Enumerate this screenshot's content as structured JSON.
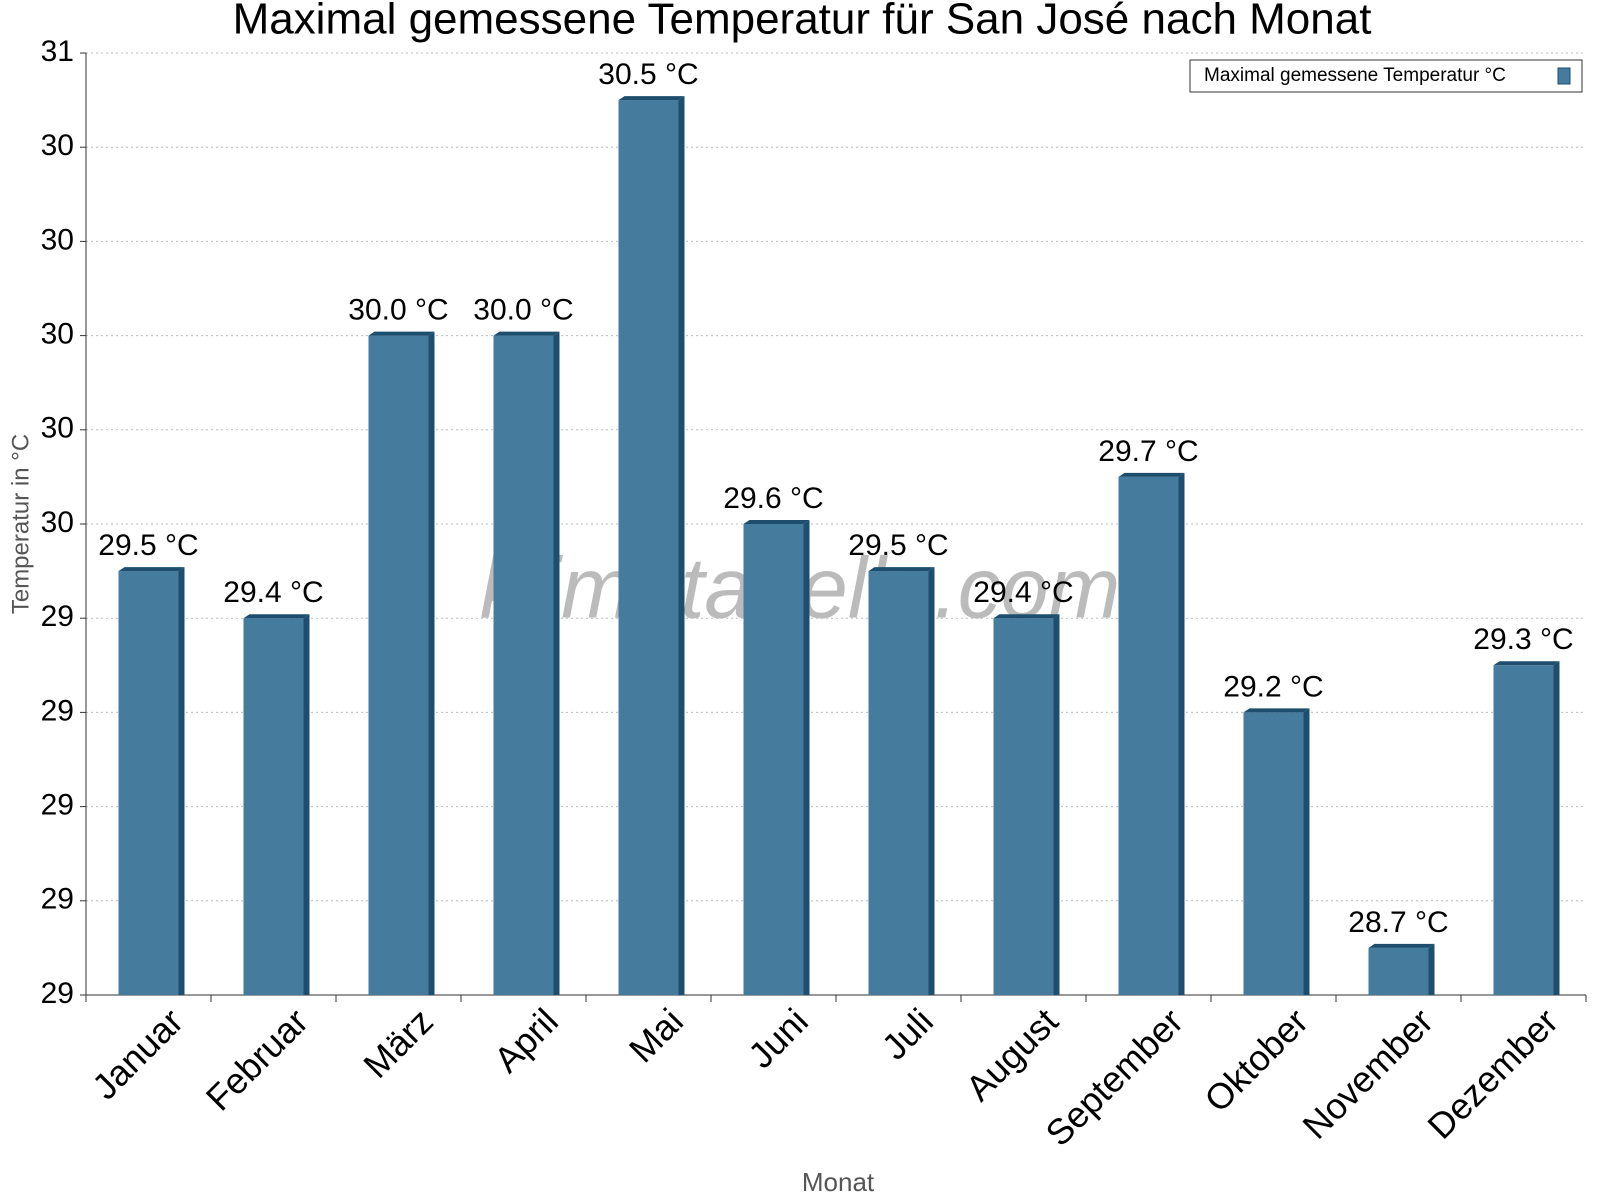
{
  "chart_data": {
    "type": "bar",
    "title": "Maximal gemessene Temperatur für San José nach Monat",
    "watermark": "klimatabelle.com",
    "x_label": "Monat",
    "y_label": "Temperatur in °C",
    "categories": [
      "Januar",
      "Februar",
      "März",
      "April",
      "Mai",
      "Juni",
      "Juli",
      "August",
      "September",
      "Oktober",
      "November",
      "Dezember"
    ],
    "series": [
      {
        "name": "Maximal gemessene Temperatur °C",
        "color": "#457b9d",
        "values": [
          29.5,
          29.4,
          30.0,
          30.0,
          30.5,
          29.6,
          29.5,
          29.4,
          29.7,
          29.2,
          28.7,
          29.3
        ],
        "value_labels": [
          "29.5 °C",
          "29.4 °C",
          "30.0 °C",
          "30.0 °C",
          "30.5 °C",
          "29.6 °C",
          "29.5 °C",
          "29.4 °C",
          "29.7 °C",
          "29.2 °C",
          "28.7 °C",
          "29.3 °C"
        ]
      }
    ],
    "ylim": [
      28.6,
      30.6
    ],
    "yticks": [
      {
        "value": 28.6,
        "label": "29"
      },
      {
        "value": 28.8,
        "label": "29"
      },
      {
        "value": 29.0,
        "label": "29"
      },
      {
        "value": 29.2,
        "label": "29"
      },
      {
        "value": 29.4,
        "label": "29"
      },
      {
        "value": 29.6,
        "label": "30"
      },
      {
        "value": 29.8,
        "label": "30"
      },
      {
        "value": 30.0,
        "label": "30"
      },
      {
        "value": 30.2,
        "label": "30"
      },
      {
        "value": 30.4,
        "label": "30"
      },
      {
        "value": 30.6,
        "label": "31"
      }
    ],
    "grid": true,
    "legend_position": "top-right"
  }
}
